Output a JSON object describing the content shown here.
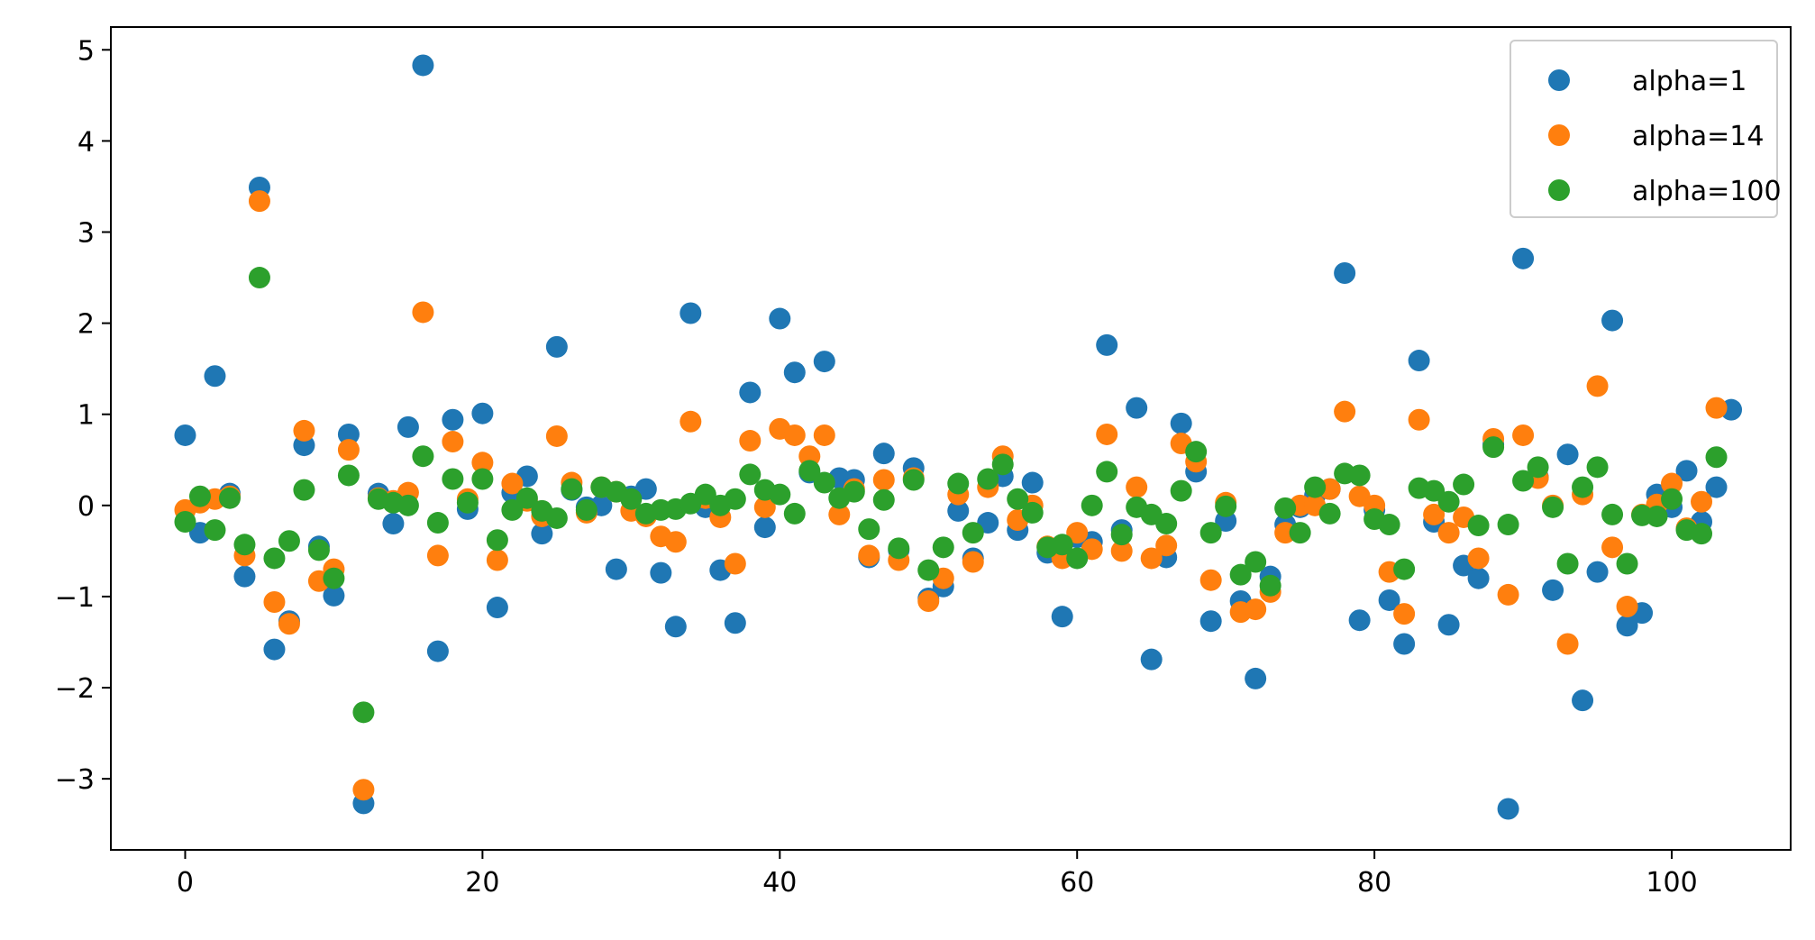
{
  "chart_data": {
    "type": "scatter",
    "title": "",
    "xlabel": "",
    "ylabel": "",
    "xlim": [
      -5,
      108
    ],
    "ylim": [
      -3.78,
      5.25
    ],
    "xticks": [
      0,
      20,
      40,
      60,
      80,
      100
    ],
    "xtick_labels": [
      "0",
      "20",
      "40",
      "60",
      "80",
      "100"
    ],
    "yticks": [
      -3,
      -2,
      -1,
      0,
      1,
      2,
      3,
      4,
      5
    ],
    "ytick_labels": [
      "−3",
      "−2",
      "−1",
      "0",
      "1",
      "2",
      "3",
      "4",
      "5"
    ],
    "grid": false,
    "legend_position": "top-right",
    "series": [
      {
        "name": "alpha=1",
        "color": "#1f77b4",
        "values": [
          0.77,
          -0.3,
          1.42,
          0.13,
          -0.78,
          3.49,
          -1.58,
          -1.27,
          0.66,
          -0.45,
          -0.99,
          0.78,
          -3.27,
          0.13,
          -0.2,
          0.86,
          4.83,
          -1.6,
          0.94,
          -0.04,
          1.01,
          -1.12,
          0.14,
          0.32,
          -0.31,
          1.74,
          0.17,
          -0.02,
          0.0,
          -0.7,
          0.1,
          0.18,
          -0.74,
          -1.33,
          2.11,
          -0.02,
          -0.71,
          -1.29,
          1.24,
          -0.24,
          2.05,
          1.46,
          0.36,
          1.58,
          0.3,
          0.28,
          -0.57,
          0.57,
          -0.49,
          0.41,
          -1.02,
          -0.89,
          -0.06,
          -0.58,
          -0.19,
          0.32,
          -0.27,
          0.25,
          -0.52,
          -1.22,
          -0.35,
          -0.4,
          1.76,
          -0.27,
          1.07,
          -1.69,
          -0.57,
          0.9,
          0.37,
          -1.27,
          -0.17,
          -1.05,
          -1.9,
          -0.78,
          -0.21,
          -0.02,
          0.11,
          0.18,
          2.55,
          -1.26,
          -0.05,
          -1.04,
          -1.52,
          1.59,
          -0.18,
          -1.31,
          -0.66,
          -0.8,
          0.67,
          -3.33,
          2.71,
          0.31,
          -0.93,
          0.56,
          -2.14,
          -0.73,
          2.03,
          -1.32,
          -1.18,
          0.12,
          -0.02,
          0.38,
          -0.18,
          0.2,
          1.05
        ]
      },
      {
        "name": "alpha=14",
        "color": "#ff7f0e",
        "values": [
          -0.05,
          0.03,
          0.07,
          0.1,
          -0.55,
          3.34,
          -1.06,
          -1.3,
          0.82,
          -0.83,
          -0.7,
          0.61,
          -3.12,
          0.08,
          0.05,
          0.14,
          2.12,
          -0.55,
          0.7,
          0.07,
          0.47,
          -0.6,
          0.24,
          0.05,
          -0.12,
          0.76,
          0.25,
          -0.08,
          0.2,
          0.15,
          -0.06,
          -0.12,
          -0.34,
          -0.4,
          0.92,
          0.08,
          -0.13,
          -0.64,
          0.71,
          -0.02,
          0.84,
          0.77,
          0.54,
          0.77,
          -0.1,
          0.18,
          -0.55,
          0.28,
          -0.6,
          0.3,
          -1.05,
          -0.8,
          0.12,
          -0.62,
          0.2,
          0.54,
          -0.16,
          0.0,
          -0.45,
          -0.58,
          -0.3,
          -0.48,
          0.78,
          -0.5,
          0.2,
          -0.58,
          -0.44,
          0.68,
          0.48,
          -0.82,
          0.03,
          -1.17,
          -1.14,
          -0.95,
          -0.3,
          0.0,
          0.0,
          0.18,
          1.03,
          0.1,
          0.0,
          -0.73,
          -1.19,
          0.94,
          -0.1,
          -0.3,
          -0.13,
          -0.58,
          0.73,
          -0.98,
          0.77,
          0.3,
          0.0,
          -1.52,
          0.12,
          1.31,
          -0.46,
          -1.11,
          -0.1,
          0.01,
          0.24,
          -0.25,
          0.04,
          1.07
        ]
      },
      {
        "name": "alpha=100",
        "color": "#2ca02c",
        "values": [
          -0.18,
          0.1,
          -0.27,
          0.08,
          -0.43,
          2.5,
          -0.58,
          -0.39,
          0.17,
          -0.49,
          -0.8,
          0.33,
          -2.27,
          0.07,
          0.03,
          0.0,
          0.54,
          -0.19,
          0.29,
          0.03,
          0.29,
          -0.38,
          -0.05,
          0.08,
          -0.06,
          -0.14,
          0.18,
          -0.05,
          0.2,
          0.15,
          0.07,
          -0.09,
          -0.05,
          -0.04,
          0.02,
          0.12,
          0.0,
          0.07,
          0.34,
          0.17,
          0.12,
          -0.09,
          0.38,
          0.25,
          0.08,
          0.15,
          -0.26,
          0.06,
          -0.47,
          0.28,
          -0.71,
          -0.46,
          0.24,
          -0.3,
          0.29,
          0.45,
          0.07,
          -0.08,
          -0.46,
          -0.43,
          -0.58,
          0.0,
          0.37,
          -0.32,
          -0.02,
          -0.1,
          -0.2,
          0.16,
          0.59,
          -0.3,
          -0.01,
          -0.76,
          -0.62,
          -0.88,
          -0.03,
          -0.3,
          0.2,
          -0.09,
          0.35,
          0.33,
          -0.15,
          -0.21,
          -0.7,
          0.19,
          0.16,
          0.04,
          0.23,
          -0.22,
          0.64,
          -0.21,
          0.27,
          0.42,
          -0.02,
          -0.64,
          0.2,
          0.42,
          -0.1,
          -0.64,
          -0.11,
          -0.12,
          0.07,
          -0.27,
          -0.31,
          0.53
        ]
      }
    ]
  }
}
